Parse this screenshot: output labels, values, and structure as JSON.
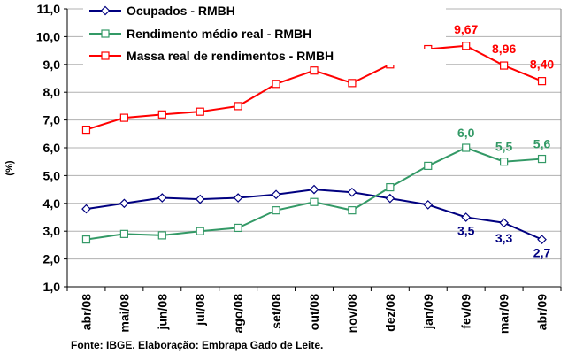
{
  "chart_data": {
    "type": "line",
    "ylabel": "(%)",
    "ylim": [
      1.0,
      11.0
    ],
    "yticks": [
      "1,0",
      "2,0",
      "3,0",
      "4,0",
      "5,0",
      "6,0",
      "7,0",
      "8,0",
      "9,0",
      "10,0",
      "11,0"
    ],
    "grid": true,
    "legend_position": "top-left",
    "categories": [
      "abr/08",
      "mai/08",
      "jun/08",
      "jul/08",
      "ago/08",
      "set/08",
      "out/08",
      "nov/08",
      "dez/08",
      "jan/09",
      "fev/09",
      "mar/09",
      "abr/09"
    ],
    "series": [
      {
        "name": "Ocupados - RMBH",
        "color": "#000080",
        "marker": "diamond",
        "values": [
          3.8,
          4.0,
          4.2,
          4.15,
          4.2,
          4.32,
          4.5,
          4.4,
          4.18,
          3.95,
          3.5,
          3.3,
          2.7
        ],
        "data_labels": [
          null,
          null,
          null,
          null,
          null,
          null,
          null,
          null,
          null,
          null,
          "3,5",
          "3,3",
          "2,7"
        ]
      },
      {
        "name": "Rendimento médio real - RMBH",
        "color": "#339966",
        "marker": "square",
        "values": [
          2.7,
          2.9,
          2.85,
          3.0,
          3.12,
          3.75,
          4.05,
          3.75,
          4.58,
          5.35,
          6.0,
          5.5,
          5.6
        ],
        "data_labels": [
          null,
          null,
          null,
          null,
          null,
          null,
          null,
          null,
          null,
          null,
          "6,0",
          "5,5",
          "5,6"
        ]
      },
      {
        "name": "Massa real de rendimentos - RMBH",
        "color": "#ff0000",
        "marker": "square",
        "values": [
          6.65,
          7.08,
          7.2,
          7.3,
          7.5,
          8.3,
          8.78,
          8.33,
          9.0,
          9.55,
          9.67,
          8.96,
          8.4
        ],
        "data_labels": [
          null,
          null,
          null,
          null,
          null,
          null,
          null,
          null,
          null,
          null,
          "9,67",
          "8,96",
          "8,40"
        ]
      }
    ]
  },
  "source_note": "Fonte: IBGE. Elaboração: Embrapa Gado de Leite."
}
